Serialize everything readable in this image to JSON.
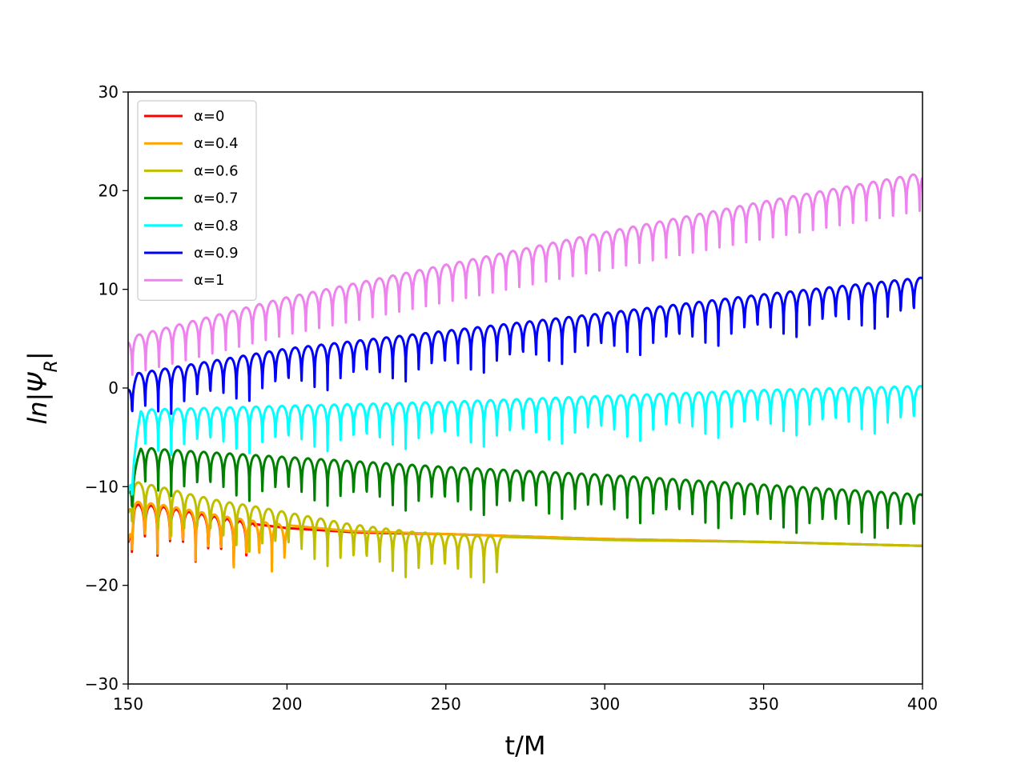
{
  "chart_data": {
    "type": "line",
    "title": "",
    "xlabel": "t/M",
    "ylabel_parts": {
      "base": "ln|Ψ",
      "sub": "R",
      "end": "|"
    },
    "xlim": [
      150,
      400
    ],
    "ylim": [
      -30,
      30
    ],
    "xticks": [
      "150",
      "200",
      "250",
      "300",
      "350",
      "400"
    ],
    "yticks": [
      "30",
      "20",
      "10",
      "0",
      "−10",
      "−20",
      "−30"
    ],
    "grid": false,
    "legend": {
      "placement": "top-left"
    },
    "series": [
      {
        "name": "α=0",
        "color": "#ff0000",
        "envelope": [
          [
            150,
            -15.5
          ],
          [
            152,
            -11.8
          ],
          [
            160,
            -12.0
          ],
          [
            170,
            -12.6
          ],
          [
            180,
            -13.2
          ],
          [
            190,
            -13.8
          ],
          [
            200,
            -14.2
          ],
          [
            210,
            -14.4
          ],
          [
            220,
            -14.6
          ],
          [
            230,
            -14.7
          ],
          [
            250,
            -14.8
          ],
          [
            270,
            -15.0
          ],
          [
            300,
            -15.3
          ],
          [
            350,
            -15.6
          ],
          [
            400,
            -16.0
          ]
        ],
        "period": 4.0,
        "oscillation_end": 190,
        "dip_depth": 5.5
      },
      {
        "name": "α=0.4",
        "color": "#ffa500",
        "envelope": [
          [
            150,
            -15.3
          ],
          [
            152,
            -11.5
          ],
          [
            160,
            -11.8
          ],
          [
            170,
            -12.4
          ],
          [
            180,
            -13.0
          ],
          [
            190,
            -13.5
          ],
          [
            200,
            -13.9
          ],
          [
            210,
            -14.2
          ],
          [
            220,
            -14.5
          ],
          [
            230,
            -14.6
          ],
          [
            250,
            -14.8
          ],
          [
            270,
            -15.0
          ],
          [
            300,
            -15.3
          ],
          [
            350,
            -15.6
          ],
          [
            400,
            -16.0
          ]
        ],
        "period": 4.0,
        "oscillation_end": 200,
        "dip_depth": 6.0
      },
      {
        "name": "α=0.6",
        "color": "#bfbf00",
        "envelope": [
          [
            150,
            -12.5
          ],
          [
            152,
            -9.5
          ],
          [
            160,
            -10.0
          ],
          [
            170,
            -10.8
          ],
          [
            180,
            -11.5
          ],
          [
            190,
            -12.0
          ],
          [
            200,
            -12.6
          ],
          [
            210,
            -13.2
          ],
          [
            220,
            -13.8
          ],
          [
            230,
            -14.2
          ],
          [
            240,
            -14.6
          ],
          [
            250,
            -14.8
          ],
          [
            260,
            -15.0
          ],
          [
            270,
            -15.1
          ],
          [
            280,
            -15.2
          ],
          [
            300,
            -15.4
          ],
          [
            350,
            -15.6
          ],
          [
            400,
            -16.0
          ]
        ],
        "period": 4.1,
        "oscillation_end": 268,
        "dip_depth": 7.0
      },
      {
        "name": "α=0.7",
        "color": "#008000",
        "envelope": [
          [
            150,
            -10.5
          ],
          [
            154,
            -6.0
          ],
          [
            160,
            -6.2
          ],
          [
            200,
            -7.0
          ],
          [
            250,
            -8.0
          ],
          [
            300,
            -8.8
          ],
          [
            350,
            -9.8
          ],
          [
            400,
            -10.8
          ]
        ],
        "period": 4.1,
        "oscillation_end": 400,
        "dip_depth": 7.0
      },
      {
        "name": "α=0.8",
        "color": "#00ffff",
        "envelope": [
          [
            150,
            -10.5
          ],
          [
            154,
            -2.2
          ],
          [
            200,
            -1.8
          ],
          [
            250,
            -1.4
          ],
          [
            300,
            -0.8
          ],
          [
            350,
            -0.2
          ],
          [
            400,
            0.2
          ]
        ],
        "period": 4.1,
        "oscillation_end": 400,
        "dip_depth": 6.5
      },
      {
        "name": "α=0.9",
        "color": "#0000ff",
        "envelope": [
          [
            150,
            0.0
          ],
          [
            153,
            1.5
          ],
          [
            200,
            4.0
          ],
          [
            250,
            5.8
          ],
          [
            300,
            7.6
          ],
          [
            350,
            9.5
          ],
          [
            400,
            11.2
          ]
        ],
        "period": 4.1,
        "oscillation_end": 400,
        "dip_depth": 6.0
      },
      {
        "name": "α=1",
        "color": "#ee82ee",
        "envelope": [
          [
            150,
            4.8
          ],
          [
            152,
            5.3
          ],
          [
            200,
            9.2
          ],
          [
            250,
            12.5
          ],
          [
            300,
            15.8
          ],
          [
            350,
            18.9
          ],
          [
            400,
            21.8
          ]
        ],
        "period": 4.2,
        "oscillation_end": 400,
        "dip_depth": 6.5
      }
    ]
  }
}
